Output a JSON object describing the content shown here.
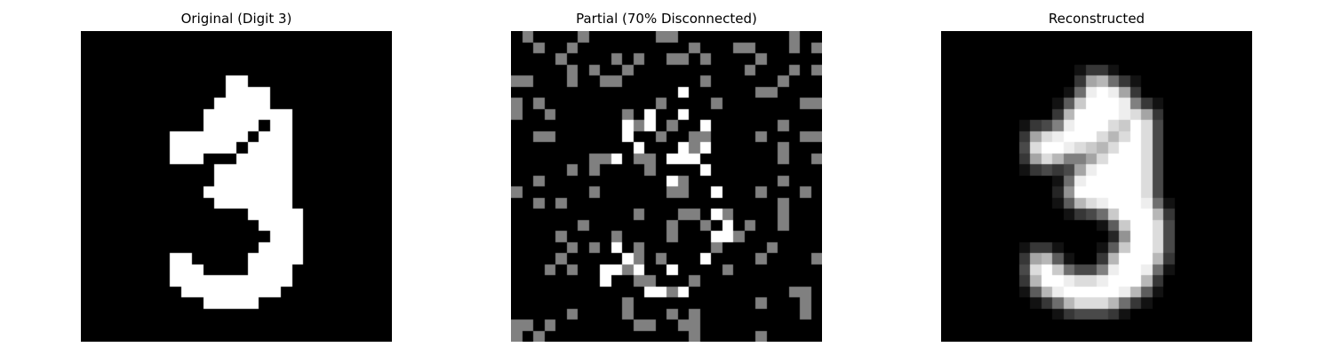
{
  "figure": {
    "titles": [
      "Original (Digit 3)",
      "Partial (70% Disconnected)",
      "Reconstructed"
    ]
  },
  "chart_data": [
    {
      "type": "heatmap",
      "title": "Original (Digit 3)",
      "grid_size": [
        28,
        28
      ],
      "colormap": "gray",
      "value_range": [
        0,
        1
      ],
      "axes": "off",
      "digit": 3,
      "nonzero_runs": [
        [
          4,
          13,
          14
        ],
        [
          5,
          13,
          16
        ],
        [
          6,
          12,
          16
        ],
        [
          7,
          11,
          18
        ],
        [
          8,
          11,
          15
        ],
        [
          8,
          17,
          18
        ],
        [
          9,
          8,
          14
        ],
        [
          9,
          16,
          18
        ],
        [
          10,
          8,
          13
        ],
        [
          10,
          15,
          18
        ],
        [
          11,
          8,
          10
        ],
        [
          11,
          14,
          18
        ],
        [
          12,
          12,
          18
        ],
        [
          13,
          12,
          18
        ],
        [
          14,
          11,
          18
        ],
        [
          15,
          12,
          18
        ],
        [
          16,
          15,
          19
        ],
        [
          17,
          16,
          19
        ],
        [
          18,
          17,
          19
        ],
        [
          19,
          16,
          19
        ],
        [
          20,
          8,
          9
        ],
        [
          20,
          15,
          19
        ],
        [
          21,
          8,
          10
        ],
        [
          21,
          15,
          18
        ],
        [
          22,
          8,
          18
        ],
        [
          23,
          9,
          17
        ],
        [
          24,
          11,
          15
        ]
      ]
    },
    {
      "type": "heatmap",
      "title": "Partial (70% Disconnected)",
      "grid_size": [
        28,
        28
      ],
      "colormap": "gray",
      "value_range": [
        0,
        1
      ],
      "axes": "off",
      "disconnected_fraction": 0.7,
      "grey_value": 0.5,
      "white_cells": [
        [
          5,
          15
        ],
        [
          7,
          12
        ],
        [
          7,
          15
        ],
        [
          8,
          10
        ],
        [
          8,
          12
        ],
        [
          8,
          17
        ],
        [
          9,
          10
        ],
        [
          10,
          11
        ],
        [
          10,
          15
        ],
        [
          10,
          17
        ],
        [
          11,
          9
        ],
        [
          11,
          14
        ],
        [
          11,
          15
        ],
        [
          11,
          16
        ],
        [
          12,
          17
        ],
        [
          13,
          14
        ],
        [
          14,
          18
        ],
        [
          16,
          18
        ],
        [
          17,
          19
        ],
        [
          18,
          18
        ],
        [
          18,
          19
        ],
        [
          19,
          9
        ],
        [
          20,
          10
        ],
        [
          20,
          17
        ],
        [
          21,
          8
        ],
        [
          21,
          9
        ],
        [
          21,
          11
        ],
        [
          21,
          14
        ],
        [
          22,
          8
        ],
        [
          23,
          12
        ],
        [
          23,
          13
        ],
        [
          23,
          15
        ]
      ],
      "seed": 70
    },
    {
      "type": "heatmap",
      "title": "Reconstructed",
      "grid_size": [
        28,
        28
      ],
      "colormap": "gray",
      "value_range": [
        0,
        1
      ],
      "axes": "off",
      "description_of_output": "blurred reconstruction of digit 3"
    }
  ]
}
